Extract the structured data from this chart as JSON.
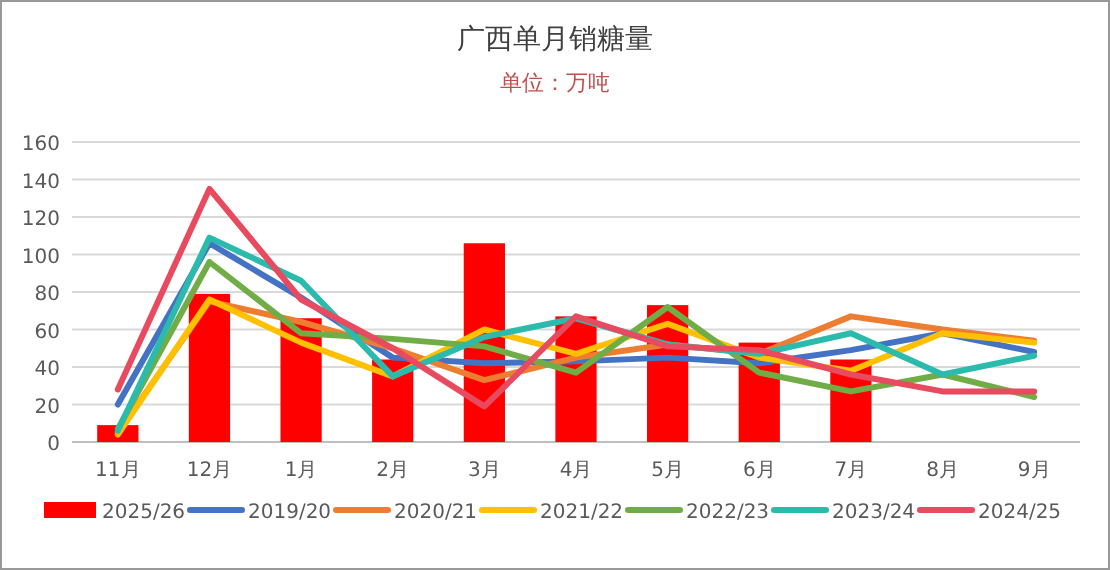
{
  "chart_data": {
    "type": "line",
    "title": "广西单月销糖量",
    "subtitle": "单位：万吨",
    "categories": [
      "11月",
      "12月",
      "1月",
      "2月",
      "3月",
      "4月",
      "5月",
      "6月",
      "7月",
      "8月",
      "9月"
    ],
    "series": [
      {
        "name": "2025/26",
        "type": "bar",
        "color": "#ff0000",
        "values": [
          9,
          79,
          66,
          44,
          106,
          67,
          73,
          53,
          44,
          null,
          null
        ]
      },
      {
        "name": "2019/20",
        "color": "#4472c4",
        "values": [
          20,
          106,
          77,
          45,
          42,
          43,
          45,
          42,
          49,
          58,
          48
        ]
      },
      {
        "name": "2020/21",
        "color": "#ed7d31",
        "values": [
          5,
          75,
          64,
          50,
          33,
          45,
          52,
          47,
          67,
          60,
          54
        ]
      },
      {
        "name": "2021/22",
        "color": "#ffc000",
        "values": [
          4,
          76,
          53,
          35,
          60,
          47,
          63,
          45,
          38,
          58,
          53
        ]
      },
      {
        "name": "2022/23",
        "color": "#70ad47",
        "values": [
          7,
          96,
          58,
          55,
          51,
          37,
          72,
          37,
          27,
          36,
          24
        ]
      },
      {
        "name": "2023/24",
        "color": "#2bbbad",
        "values": [
          6,
          109,
          86,
          35,
          56,
          66,
          52,
          47,
          58,
          36,
          46
        ]
      },
      {
        "name": "2024/25",
        "color": "#e84a5f",
        "values": [
          28,
          135,
          76,
          50,
          19,
          67,
          51,
          49,
          36,
          27,
          27
        ]
      }
    ],
    "ylim": [
      0,
      160
    ],
    "yticks": [
      0,
      20,
      40,
      60,
      80,
      100,
      120,
      140,
      160
    ],
    "grid": "y",
    "legend": "bottom"
  }
}
